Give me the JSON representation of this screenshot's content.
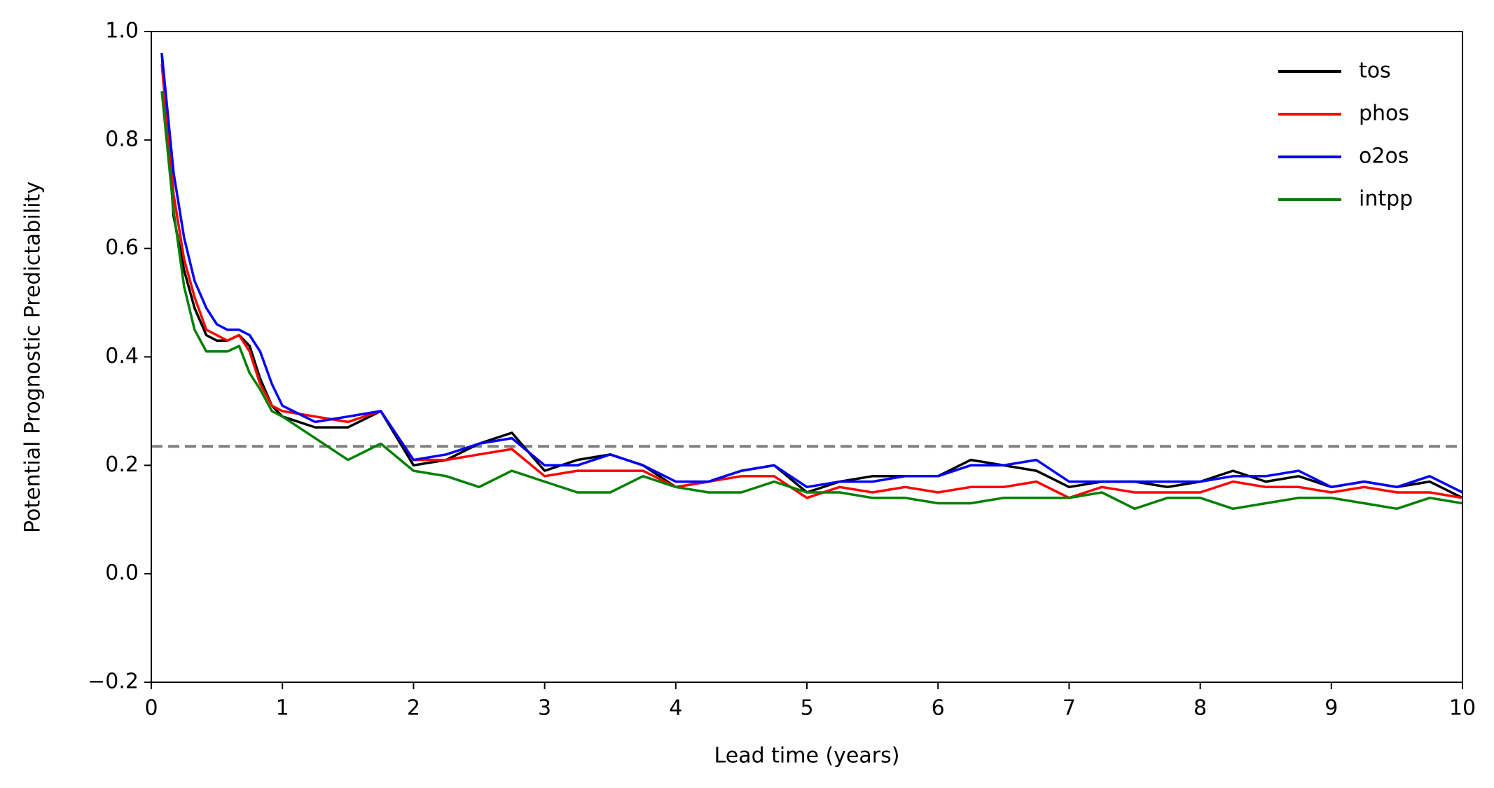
{
  "chart_data": {
    "type": "line",
    "xlabel": "Lead time (years)",
    "ylabel": "Potential Prognostic Predictability",
    "x": [
      0.08,
      0.17,
      0.25,
      0.33,
      0.42,
      0.5,
      0.58,
      0.67,
      0.75,
      0.83,
      0.92,
      1.0,
      1.25,
      1.5,
      1.75,
      2.0,
      2.25,
      2.5,
      2.75,
      3.0,
      3.25,
      3.5,
      3.75,
      4.0,
      4.25,
      4.5,
      4.75,
      5.0,
      5.25,
      5.5,
      5.75,
      6.0,
      6.25,
      6.5,
      6.75,
      7.0,
      7.25,
      7.5,
      7.75,
      8.0,
      8.25,
      8.5,
      8.75,
      9.0,
      9.25,
      9.5,
      9.75,
      10.0
    ],
    "series": [
      {
        "name": "tos",
        "color": "#000000",
        "values": [
          0.96,
          0.66,
          0.56,
          0.49,
          0.44,
          0.43,
          0.43,
          0.44,
          0.42,
          0.36,
          0.31,
          0.29,
          0.27,
          0.27,
          0.3,
          0.2,
          0.21,
          0.24,
          0.26,
          0.19,
          0.21,
          0.22,
          0.2,
          0.16,
          0.17,
          0.19,
          0.2,
          0.15,
          0.17,
          0.18,
          0.18,
          0.18,
          0.21,
          0.2,
          0.19,
          0.16,
          0.17,
          0.17,
          0.16,
          0.17,
          0.19,
          0.17,
          0.18,
          0.16,
          0.17,
          0.16,
          0.17,
          0.14
        ]
      },
      {
        "name": "phos",
        "color": "#ff0000",
        "values": [
          0.94,
          0.7,
          0.58,
          0.51,
          0.45,
          0.44,
          0.43,
          0.44,
          0.41,
          0.35,
          0.31,
          0.3,
          0.29,
          0.28,
          0.3,
          0.21,
          0.21,
          0.22,
          0.23,
          0.18,
          0.19,
          0.19,
          0.19,
          0.16,
          0.17,
          0.18,
          0.18,
          0.14,
          0.16,
          0.15,
          0.16,
          0.15,
          0.16,
          0.16,
          0.17,
          0.14,
          0.16,
          0.15,
          0.15,
          0.15,
          0.17,
          0.16,
          0.16,
          0.15,
          0.16,
          0.15,
          0.15,
          0.14
        ]
      },
      {
        "name": "o2os",
        "color": "#0000ff",
        "values": [
          0.96,
          0.74,
          0.62,
          0.54,
          0.49,
          0.46,
          0.45,
          0.45,
          0.44,
          0.41,
          0.35,
          0.31,
          0.28,
          0.29,
          0.3,
          0.21,
          0.22,
          0.24,
          0.25,
          0.2,
          0.2,
          0.22,
          0.2,
          0.17,
          0.17,
          0.19,
          0.2,
          0.16,
          0.17,
          0.17,
          0.18,
          0.18,
          0.2,
          0.2,
          0.21,
          0.17,
          0.17,
          0.17,
          0.17,
          0.17,
          0.18,
          0.18,
          0.19,
          0.16,
          0.17,
          0.16,
          0.18,
          0.15
        ]
      },
      {
        "name": "intpp",
        "color": "#008000",
        "values": [
          0.89,
          0.67,
          0.53,
          0.45,
          0.41,
          0.41,
          0.41,
          0.42,
          0.37,
          0.34,
          0.3,
          0.29,
          0.25,
          0.21,
          0.24,
          0.19,
          0.18,
          0.16,
          0.19,
          0.17,
          0.15,
          0.15,
          0.18,
          0.16,
          0.15,
          0.15,
          0.17,
          0.15,
          0.15,
          0.14,
          0.14,
          0.13,
          0.13,
          0.14,
          0.14,
          0.14,
          0.15,
          0.12,
          0.14,
          0.14,
          0.12,
          0.13,
          0.14,
          0.14,
          0.13,
          0.12,
          0.14,
          0.13
        ]
      }
    ],
    "threshold": 0.235,
    "threshold_color": "#808080",
    "xlim": [
      0,
      10
    ],
    "xticks": [
      0,
      1,
      2,
      3,
      4,
      5,
      6,
      7,
      8,
      9,
      10
    ],
    "ylim": [
      -0.2,
      1.0
    ],
    "yticks": [
      {
        "value": -0.2,
        "label": "−0.2"
      },
      {
        "value": 0,
        "label": "0.0"
      },
      0.2,
      0.4,
      0.6,
      0.8,
      {
        "value": 1,
        "label": "1.0"
      }
    ],
    "legend": "upper right",
    "grid": false
  }
}
